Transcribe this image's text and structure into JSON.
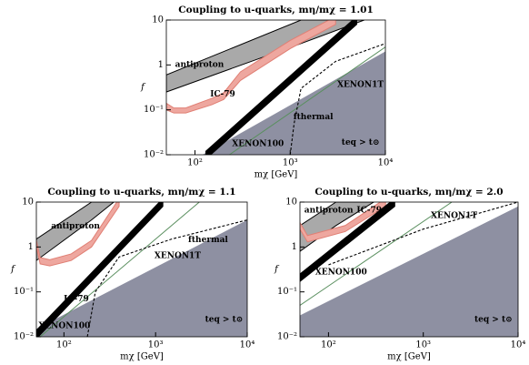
{
  "chart_data": [
    {
      "type": "line",
      "title": "Coupling to u-quarks, mη/mχ = 1.01",
      "xlabel": "mχ [GeV]",
      "ylabel": "f",
      "xscale": "log",
      "yscale": "log",
      "xlim": [
        50,
        10000
      ],
      "ylim": [
        0.01,
        10
      ],
      "xticks": [
        {
          "value": 100,
          "label": "10²"
        },
        {
          "value": 1000,
          "label": "10³"
        },
        {
          "value": 10000,
          "label": "10⁴"
        }
      ],
      "yticks": [
        {
          "value": 0.01,
          "label": "10⁻²"
        },
        {
          "value": 0.1,
          "label": "10⁻¹"
        },
        1,
        10
      ],
      "annotations": [
        "antiproton",
        "IC-79",
        "XENON100",
        "XENON1T",
        "fthermal",
        "teq > t⊙"
      ],
      "series": [
        {
          "kind": "region",
          "color": "#8e90a2",
          "x": [
            120,
            10000
          ],
          "values": [
            0.01,
            2
          ]
        },
        {
          "kind": "band",
          "color": "#a9a9a9",
          "edge": "#000000",
          "x": [
            50,
            1300,
            6000
          ],
          "lower": [
            0.25,
            3,
            10
          ],
          "upper": [
            0.6,
            10,
            10
          ]
        },
        {
          "kind": "band",
          "color": "#eea79f",
          "edge": "#e07f74",
          "x": [
            50,
            60,
            80,
            150,
            200,
            300,
            1000,
            3000
          ],
          "lower": [
            0.1,
            0.085,
            0.085,
            0.13,
            0.17,
            0.45,
            2.3,
            8
          ],
          "upper": [
            0.14,
            0.11,
            0.11,
            0.18,
            0.24,
            0.7,
            3.5,
            12
          ]
        },
        {
          "kind": "band",
          "color": "#000000",
          "edge": "#000000",
          "x": [
            130,
            5000
          ],
          "lower": [
            0.008,
            8
          ],
          "upper": [
            0.012,
            12
          ]
        },
        {
          "kind": "line",
          "color": "#5a8f5f",
          "x": [
            230,
            10000
          ],
          "values": [
            0.01,
            2.5
          ]
        },
        {
          "kind": "dashed",
          "color": "#000000",
          "x": [
            1000,
            1100,
            1300,
            3000,
            10000
          ],
          "values": [
            0.01,
            0.05,
            0.3,
            1.2,
            3
          ]
        }
      ]
    },
    {
      "type": "line",
      "title": "Coupling to u-quarks, mη/mχ = 1.1",
      "xlabel": "mχ [GeV]",
      "ylabel": "f",
      "xscale": "log",
      "yscale": "log",
      "xlim": [
        50,
        10000
      ],
      "ylim": [
        0.01,
        10
      ],
      "xticks": [
        {
          "value": 100,
          "label": "10²"
        },
        {
          "value": 1000,
          "label": "10³"
        },
        {
          "value": 10000,
          "label": "10⁴"
        }
      ],
      "yticks": [
        {
          "value": 0.01,
          "label": "10⁻²"
        },
        {
          "value": 0.1,
          "label": "10⁻¹"
        },
        1,
        10
      ],
      "annotations": [
        "antiproton",
        "IC-79",
        "XENON100",
        "XENON1T",
        "fthermal",
        "teq > t⊙"
      ],
      "series": [
        {
          "kind": "region",
          "color": "#8e90a2",
          "x": [
            50,
            10000
          ],
          "values": [
            0.015,
            4
          ]
        },
        {
          "kind": "band",
          "color": "#a9a9a9",
          "edge": "#000000",
          "x": [
            50,
            200,
            350
          ],
          "lower": [
            0.5,
            4,
            10
          ],
          "upper": [
            1.5,
            10,
            10
          ]
        },
        {
          "kind": "band",
          "color": "#eea79f",
          "edge": "#e07f74",
          "x": [
            50,
            55,
            70,
            120,
            200,
            400
          ],
          "lower": [
            1,
            0.42,
            0.38,
            0.5,
            1,
            8
          ],
          "upper": [
            1.4,
            0.58,
            0.52,
            0.7,
            1.4,
            12
          ]
        },
        {
          "kind": "band",
          "color": "#000000",
          "edge": "#000000",
          "x": [
            50,
            1200
          ],
          "lower": [
            0.009,
            8
          ],
          "upper": [
            0.014,
            12
          ]
        },
        {
          "kind": "line",
          "color": "#5a8f5f",
          "x": [
            55,
            3000
          ],
          "values": [
            0.01,
            10
          ]
        },
        {
          "kind": "dashed",
          "color": "#000000",
          "x": [
            180,
            220,
            400,
            1500,
            10000
          ],
          "values": [
            0.01,
            0.1,
            0.6,
            1.5,
            4
          ]
        }
      ]
    },
    {
      "type": "line",
      "title": "Coupling to u-quarks, mη/mχ = 2.0",
      "xlabel": "mχ [GeV]",
      "ylabel": "f",
      "xscale": "log",
      "yscale": "log",
      "xlim": [
        50,
        10000
      ],
      "ylim": [
        0.01,
        10
      ],
      "xticks": [
        {
          "value": 100,
          "label": "10²"
        },
        {
          "value": 1000,
          "label": "10³"
        },
        {
          "value": 10000,
          "label": "10⁴"
        }
      ],
      "yticks": [
        {
          "value": 0.01,
          "label": "10⁻²"
        },
        {
          "value": 0.1,
          "label": "10⁻¹"
        },
        1,
        10
      ],
      "annotations": [
        "antiproton",
        "IC-79",
        "XENON100",
        "XENON1T",
        "teq > t⊙"
      ],
      "series": [
        {
          "kind": "region",
          "color": "#8e90a2",
          "x": [
            50,
            10000
          ],
          "values": [
            0.03,
            8
          ]
        },
        {
          "kind": "band",
          "color": "#a9a9a9",
          "edge": "#000000",
          "x": [
            50,
            120,
            300
          ],
          "lower": [
            0.8,
            3,
            10
          ],
          "upper": [
            3,
            10,
            10
          ]
        },
        {
          "kind": "band",
          "color": "#eea79f",
          "edge": "#e07f74",
          "x": [
            50,
            60,
            150,
            400
          ],
          "lower": [
            2.5,
            1.3,
            2.2,
            8
          ],
          "upper": [
            3.5,
            1.8,
            3,
            12
          ]
        },
        {
          "kind": "band",
          "color": "#000000",
          "edge": "#000000",
          "x": [
            50,
            500
          ],
          "lower": [
            0.17,
            8
          ],
          "upper": [
            0.25,
            12
          ]
        },
        {
          "kind": "line",
          "color": "#5a8f5f",
          "x": [
            50,
            2000
          ],
          "values": [
            0.05,
            10
          ]
        },
        {
          "kind": "dashed",
          "color": "#000000",
          "x": [
            100,
            1000,
            10000
          ],
          "values": [
            0.4,
            2.5,
            10
          ]
        }
      ]
    }
  ]
}
